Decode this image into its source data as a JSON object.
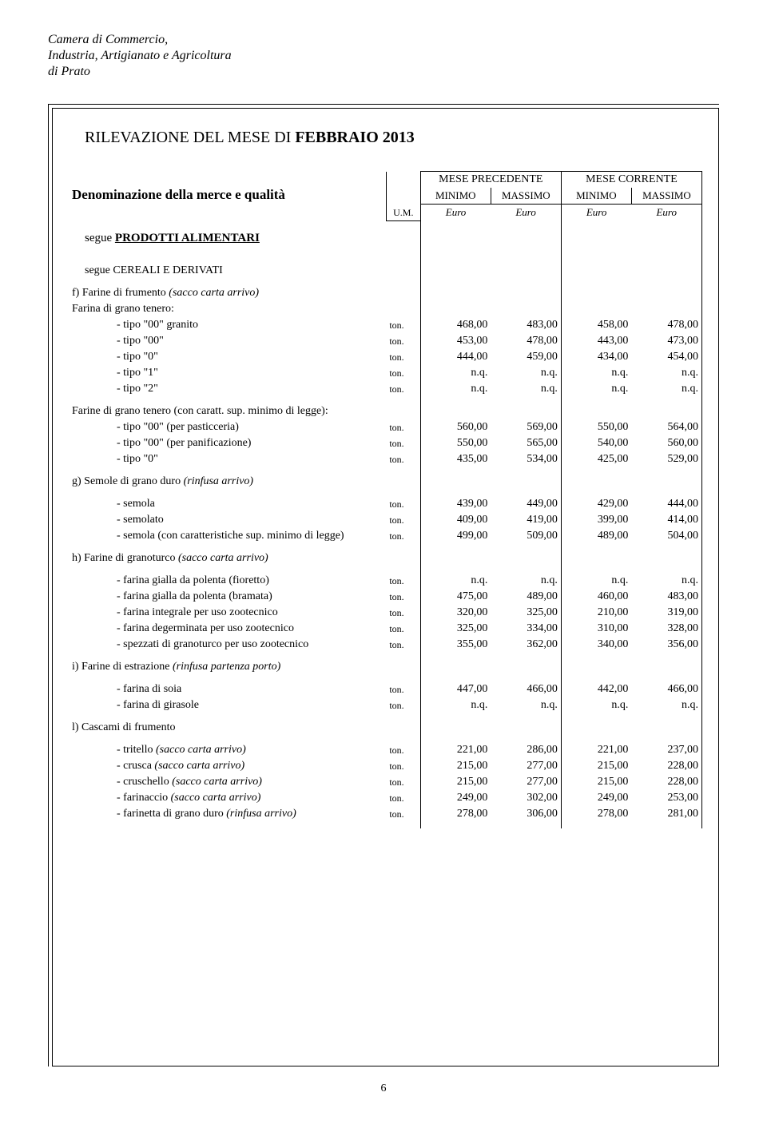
{
  "org": {
    "line1": "Camera di Commercio,",
    "line2": "Industria, Artigianato e Agricoltura",
    "line3": "di Prato"
  },
  "title_prefix": "RILEVAZIONE DEL MESE DI ",
  "title_month": "FEBBRAIO 2013",
  "denom": "Denominazione della merce e qualità",
  "um_label": "U.M.",
  "col_group_prev": "MESE PRECEDENTE",
  "col_group_curr": "MESE CORRENTE",
  "col_min": "MINIMO",
  "col_max": "MASSIMO",
  "euro": "Euro",
  "section1": "segue PRODOTTI ALIMENTARI",
  "section2": "segue CEREALI E DERIVATI",
  "groups": [
    {
      "letter": "f)",
      "title": "Farine di frumento",
      "note": "(sacco carta arrivo)",
      "subs": [
        {
          "title": "Farina di grano tenero:",
          "rows": [
            {
              "l": "- tipo \"00\" granito",
              "u": "ton.",
              "v": [
                "468,00",
                "483,00",
                "458,00",
                "478,00"
              ]
            },
            {
              "l": "- tipo \"00\"",
              "u": "ton.",
              "v": [
                "453,00",
                "478,00",
                "443,00",
                "473,00"
              ]
            },
            {
              "l": "- tipo \"0\"",
              "u": "ton.",
              "v": [
                "444,00",
                "459,00",
                "434,00",
                "454,00"
              ]
            },
            {
              "l": "- tipo \"1\"",
              "u": "ton.",
              "v": [
                "n.q.",
                "n.q.",
                "n.q.",
                "n.q."
              ]
            },
            {
              "l": "- tipo \"2\"",
              "u": "ton.",
              "v": [
                "n.q.",
                "n.q.",
                "n.q.",
                "n.q."
              ]
            }
          ]
        },
        {
          "title": "Farine di grano tenero (con caratt. sup. minimo di legge):",
          "rows": [
            {
              "l": "- tipo \"00\" (per pasticceria)",
              "u": "ton.",
              "v": [
                "560,00",
                "569,00",
                "550,00",
                "564,00"
              ]
            },
            {
              "l": "- tipo \"00\" (per panificazione)",
              "u": "ton.",
              "v": [
                "550,00",
                "565,00",
                "540,00",
                "560,00"
              ]
            },
            {
              "l": "- tipo \"0\"",
              "u": "ton.",
              "v": [
                "435,00",
                "534,00",
                "425,00",
                "529,00"
              ]
            }
          ]
        }
      ]
    },
    {
      "letter": "g)",
      "title": "Semole di grano duro",
      "note": "(rinfusa arrivo)",
      "subs": [
        {
          "title": "",
          "rows": [
            {
              "l": "- semola",
              "u": "ton.",
              "v": [
                "439,00",
                "449,00",
                "429,00",
                "444,00"
              ]
            },
            {
              "l": "- semolato",
              "u": "ton.",
              "v": [
                "409,00",
                "419,00",
                "399,00",
                "414,00"
              ]
            },
            {
              "l": "- semola (con caratteristiche sup. minimo di legge)",
              "u": "ton.",
              "v": [
                "499,00",
                "509,00",
                "489,00",
                "504,00"
              ]
            }
          ]
        }
      ]
    },
    {
      "letter": "h)",
      "title": "Farine di granoturco",
      "note": "(sacco carta arrivo)",
      "subs": [
        {
          "title": "",
          "rows": [
            {
              "l": "- farina gialla da polenta (fioretto)",
              "u": "ton.",
              "v": [
                "n.q.",
                "n.q.",
                "n.q.",
                "n.q."
              ]
            },
            {
              "l": "- farina gialla da polenta (bramata)",
              "u": "ton.",
              "v": [
                "475,00",
                "489,00",
                "460,00",
                "483,00"
              ]
            },
            {
              "l": "- farina integrale per uso zootecnico",
              "u": "ton.",
              "v": [
                "320,00",
                "325,00",
                "210,00",
                "319,00"
              ]
            },
            {
              "l": "- farina degerminata per uso zootecnico",
              "u": "ton.",
              "v": [
                "325,00",
                "334,00",
                "310,00",
                "328,00"
              ]
            },
            {
              "l": "- spezzati di granoturco per uso zootecnico",
              "u": "ton.",
              "v": [
                "355,00",
                "362,00",
                "340,00",
                "356,00"
              ]
            }
          ]
        }
      ]
    },
    {
      "letter": "i)",
      "title": "Farine di estrazione",
      "note": "(rinfusa partenza porto)",
      "subs": [
        {
          "title": "",
          "rows": [
            {
              "l": "- farina di soia",
              "u": "ton.",
              "v": [
                "447,00",
                "466,00",
                "442,00",
                "466,00"
              ]
            },
            {
              "l": "- farina di girasole",
              "u": "ton.",
              "v": [
                "n.q.",
                "n.q.",
                "n.q.",
                "n.q."
              ]
            }
          ]
        }
      ]
    },
    {
      "letter": "l)",
      "title": "Cascami di frumento",
      "note": "",
      "subs": [
        {
          "title": "",
          "rows": [
            {
              "l": "- tritello",
              "note": "(sacco carta arrivo)",
              "u": "ton.",
              "v": [
                "221,00",
                "286,00",
                "221,00",
                "237,00"
              ]
            },
            {
              "l": "- crusca",
              "note": "(sacco carta arrivo)",
              "u": "ton.",
              "v": [
                "215,00",
                "277,00",
                "215,00",
                "228,00"
              ]
            },
            {
              "l": "- cruschello",
              "note": "(sacco carta arrivo)",
              "u": "ton.",
              "v": [
                "215,00",
                "277,00",
                "215,00",
                "228,00"
              ]
            },
            {
              "l": "- farinaccio",
              "note": "(sacco carta arrivo)",
              "u": "ton.",
              "v": [
                "249,00",
                "302,00",
                "249,00",
                "253,00"
              ]
            },
            {
              "l": "- farinetta di grano duro",
              "note": "(rinfusa arrivo)",
              "u": "ton.",
              "v": [
                "278,00",
                "306,00",
                "278,00",
                "281,00"
              ]
            }
          ]
        }
      ]
    }
  ],
  "page_number": "6",
  "colors": {
    "text": "#000000",
    "bg": "#ffffff",
    "border": "#000000"
  }
}
